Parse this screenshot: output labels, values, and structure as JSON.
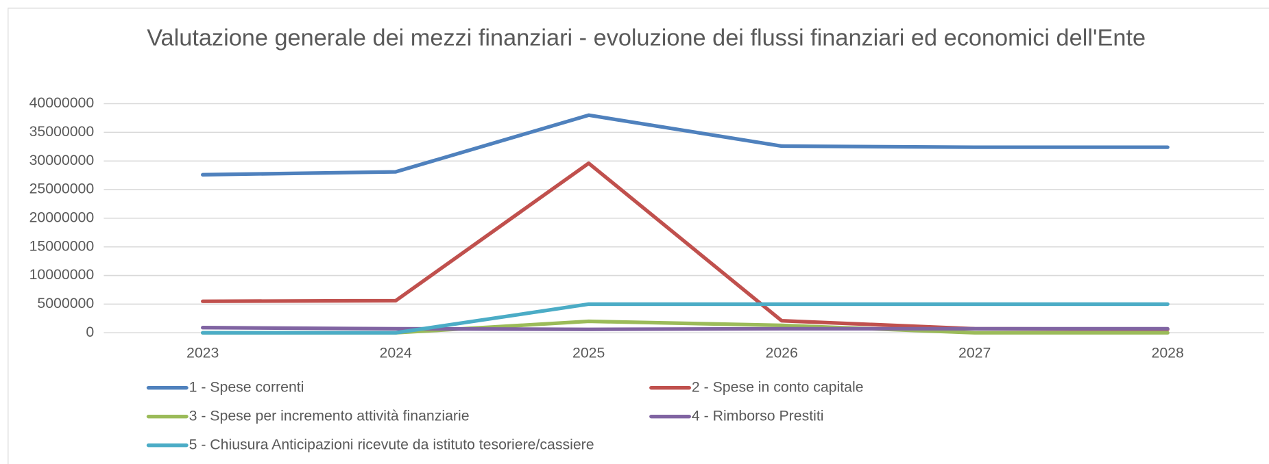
{
  "chart_data": {
    "type": "line",
    "title": "Valutazione generale dei mezzi finanziari - evoluzione dei flussi finanziari ed economici dell'Ente",
    "categories": [
      "2023",
      "2024",
      "2025",
      "2026",
      "2027",
      "2028"
    ],
    "series": [
      {
        "name": "1 - Spese correnti",
        "color": "#4f81bd",
        "values": [
          27600000,
          28100000,
          38000000,
          32600000,
          32400000,
          32400000
        ]
      },
      {
        "name": "2 - Spese in conto capitale",
        "color": "#c0504d",
        "values": [
          5500000,
          5600000,
          29600000,
          2100000,
          700000,
          600000
        ]
      },
      {
        "name": "3 - Spese per incremento attività finanziarie",
        "color": "#9bbb59",
        "values": [
          0,
          0,
          2000000,
          1300000,
          0,
          0
        ]
      },
      {
        "name": "4 - Rimborso Prestiti",
        "color": "#8064a2",
        "values": [
          900000,
          700000,
          600000,
          700000,
          700000,
          700000
        ]
      },
      {
        "name": "5 - Chiusura Anticipazioni ricevute da istituto tesoriere/cassiere",
        "color": "#4bacc6",
        "values": [
          0,
          0,
          5000000,
          5000000,
          5000000,
          5000000
        ]
      }
    ],
    "ylim": [
      0,
      40000000
    ],
    "yticks": [
      0,
      5000000,
      10000000,
      15000000,
      20000000,
      25000000,
      30000000,
      35000000,
      40000000
    ],
    "grid": true
  }
}
